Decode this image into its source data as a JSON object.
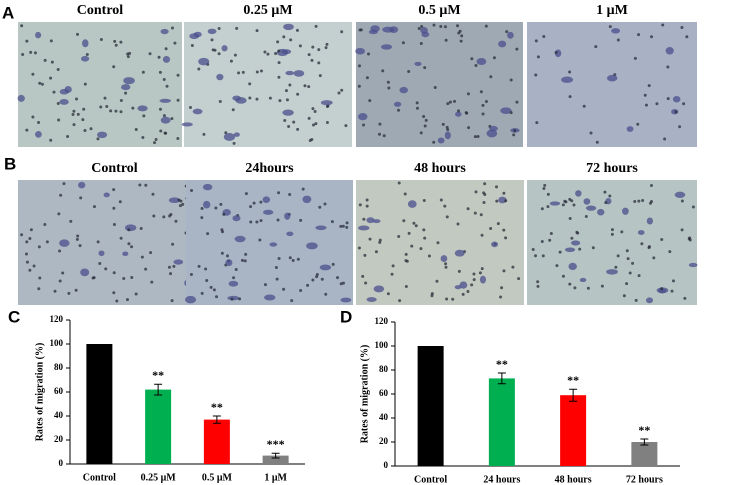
{
  "panels": [
    {
      "label": "A",
      "captions": [
        "Control",
        "0.25 μM",
        "0.5 μM",
        "1 μM"
      ]
    },
    {
      "label": "B",
      "captions": [
        "Control",
        "24hours",
        "48 hours",
        "72 hours"
      ]
    }
  ],
  "chart_data": [
    {
      "type": "bar",
      "panel_label": "C",
      "ylabel": "Rates of migration (%)",
      "categories": [
        "Control",
        "0.25 μM",
        "0.5 μM",
        "1 μM"
      ],
      "values": [
        100,
        62,
        37,
        7
      ],
      "errors": [
        0,
        4.5,
        3,
        2
      ],
      "colors": [
        "#000000",
        "#00b050",
        "#ff0000",
        "#808080"
      ],
      "annotations": [
        null,
        "**",
        "**",
        "***"
      ],
      "ylim": [
        0,
        120
      ],
      "yticks": [
        0,
        20,
        40,
        60,
        80,
        100,
        120
      ]
    },
    {
      "type": "bar",
      "panel_label": "D",
      "ylabel": "Rates of migration (%)",
      "categories": [
        "Control",
        "24 hours",
        "48 hours",
        "72 hours"
      ],
      "values": [
        100,
        73,
        59,
        20
      ],
      "errors": [
        0,
        4.5,
        5,
        2.5
      ],
      "colors": [
        "#000000",
        "#00b050",
        "#ff0000",
        "#808080"
      ],
      "annotations": [
        null,
        "**",
        "**",
        "**"
      ],
      "ylim": [
        0,
        120
      ],
      "yticks": [
        0,
        20,
        40,
        60,
        80,
        100,
        120
      ]
    }
  ]
}
